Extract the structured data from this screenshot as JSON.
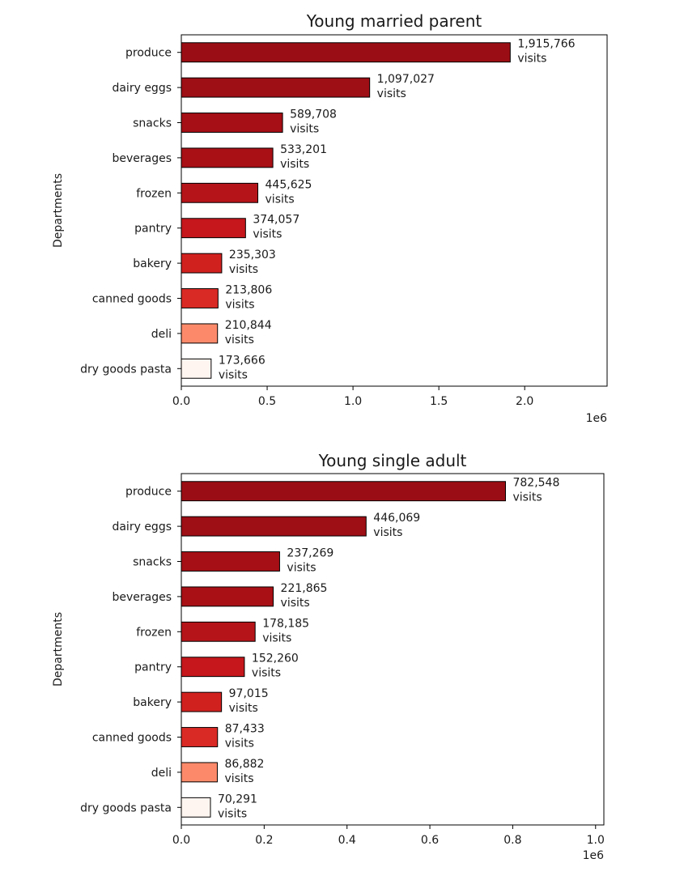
{
  "chart_data": [
    {
      "type": "bar",
      "orientation": "horizontal",
      "title": "Young married parent",
      "ylabel": "Departments",
      "xlabel": "",
      "x_offset_label": "1e6",
      "xlim": [
        0,
        2.48
      ],
      "xticks": [
        "0.0",
        "0.5",
        "1.0",
        "1.5",
        "2.0"
      ],
      "xtick_values": [
        0,
        0.5,
        1.0,
        1.5,
        2.0
      ],
      "grid": false,
      "categories": [
        "produce",
        "dairy eggs",
        "snacks",
        "beverages",
        "frozen",
        "pantry",
        "bakery",
        "canned goods",
        "deli",
        "dry goods pasta"
      ],
      "values": [
        1915766,
        1097027,
        589708,
        533201,
        445625,
        374057,
        235303,
        213806,
        210844,
        173666
      ],
      "value_labels": [
        [
          "1,915,766",
          "visits"
        ],
        [
          "1,097,027",
          "visits"
        ],
        [
          "589,708",
          "visits"
        ],
        [
          "533,201",
          "visits"
        ],
        [
          "445,625",
          "visits"
        ],
        [
          "374,057",
          "visits"
        ],
        [
          "235,303",
          "visits"
        ],
        [
          "213,806",
          "visits"
        ],
        [
          "210,844",
          "visits"
        ],
        [
          "173,666",
          "visits"
        ]
      ],
      "colors": [
        "#9b0d14",
        "#9e0e15",
        "#a50f15",
        "#a81016",
        "#b51419",
        "#c5171c",
        "#d1211f",
        "#da2a25",
        "#fc8a6a",
        "#fff5f0"
      ]
    },
    {
      "type": "bar",
      "orientation": "horizontal",
      "title": "Young single adult",
      "ylabel": "Departments",
      "xlabel": "",
      "x_offset_label": "1e6",
      "xlim": [
        0,
        1.02
      ],
      "xticks": [
        "0.0",
        "0.2",
        "0.4",
        "0.6",
        "0.8",
        "1.0"
      ],
      "xtick_values": [
        0,
        0.2,
        0.4,
        0.6,
        0.8,
        1.0
      ],
      "grid": false,
      "categories": [
        "produce",
        "dairy eggs",
        "snacks",
        "beverages",
        "frozen",
        "pantry",
        "bakery",
        "canned goods",
        "deli",
        "dry goods pasta"
      ],
      "values": [
        782548,
        446069,
        237269,
        221865,
        178185,
        152260,
        97015,
        87433,
        86882,
        70291
      ],
      "value_labels": [
        [
          "782,548",
          "visits"
        ],
        [
          "446,069",
          "visits"
        ],
        [
          "237,269",
          "visits"
        ],
        [
          "221,865",
          "visits"
        ],
        [
          "178,185",
          "visits"
        ],
        [
          "152,260",
          "visits"
        ],
        [
          "97,015",
          "visits"
        ],
        [
          "87,433",
          "visits"
        ],
        [
          "86,882",
          "visits"
        ],
        [
          "70,291",
          "visits"
        ]
      ],
      "colors": [
        "#9b0d14",
        "#9e0e15",
        "#a50f15",
        "#a81016",
        "#b51419",
        "#c5171c",
        "#d1211f",
        "#da2a25",
        "#fc8a6a",
        "#fff5f0"
      ]
    }
  ]
}
